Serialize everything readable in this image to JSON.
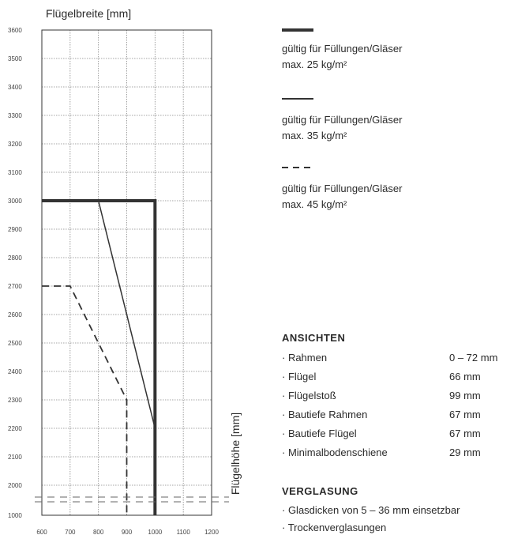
{
  "chart_data": {
    "type": "line",
    "ylabel_top": "Flügelbreite [mm]",
    "ylabel_side": "Flügelhöhe [mm]",
    "xlim": [
      600,
      1200
    ],
    "ylim": [
      1000,
      3600
    ],
    "x_ticks": [
      "600",
      "700",
      "800",
      "900",
      "1000",
      "1100",
      "1200"
    ],
    "y_ticks": [
      "1000",
      "2000",
      "2100",
      "2200",
      "2300",
      "2400",
      "2500",
      "2600",
      "2700",
      "2800",
      "2900",
      "3000",
      "3100",
      "3200",
      "3300",
      "3400",
      "3500",
      "3600"
    ],
    "series": [
      {
        "style": "thick",
        "points": [
          [
            600,
            3000
          ],
          [
            1000,
            3000
          ],
          [
            1000,
            1000
          ]
        ]
      },
      {
        "style": "thin",
        "points": [
          [
            800,
            3000
          ],
          [
            1000,
            2200
          ]
        ]
      },
      {
        "style": "dashed",
        "points": [
          [
            600,
            2700
          ],
          [
            700,
            2700
          ],
          [
            900,
            2300
          ],
          [
            900,
            1000
          ]
        ]
      }
    ],
    "axis_break": true,
    "grid": true,
    "color": "#333333"
  },
  "legend": [
    {
      "style": "thick",
      "line1": "gültig für Füllungen/Gläser",
      "line2": "max. 25 kg/m²"
    },
    {
      "style": "thin",
      "line1": "gültig für Füllungen/Gläser",
      "line2": "max. 35 kg/m²"
    },
    {
      "style": "dashed",
      "line1": "gültig für Füllungen/Gläser",
      "line2": "max. 45 kg/m²"
    }
  ],
  "ansichten": {
    "title": "ANSICHTEN",
    "items": [
      {
        "label": "· Rahmen",
        "value": "0 – 72 mm"
      },
      {
        "label": "· Flügel",
        "value": "66 mm"
      },
      {
        "label": "· Flügelstoß",
        "value": "99 mm"
      },
      {
        "label": "· Bautiefe Rahmen",
        "value": "67 mm"
      },
      {
        "label": "· Bautiefe Flügel",
        "value": "67 mm"
      },
      {
        "label": "· Minimalbodenschiene",
        "value": "29 mm"
      }
    ]
  },
  "verglasung": {
    "title": "VERGLASUNG",
    "items": [
      "· Glasdicken von 5 – 36 mm einsetzbar",
      "· Trockenverglasungen"
    ]
  }
}
